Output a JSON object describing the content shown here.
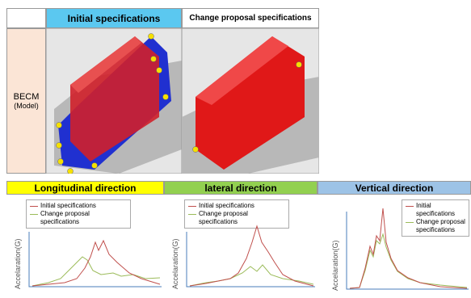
{
  "table": {
    "columns": [
      "Initial specifications",
      "Change proposal specifications"
    ],
    "row_label": [
      "BECM",
      "(Model)"
    ]
  },
  "charts": [
    {
      "title": "Longitudinal direction",
      "legend": [
        "Initial specifications",
        "Change proposal specifications"
      ],
      "y_label": "Accelaration(G)"
    },
    {
      "title": "lateral direction",
      "legend": [
        "Initial specifications",
        "Change proposal specifications"
      ],
      "y_label": "Accelaration(G)"
    },
    {
      "title": "Vertical direction",
      "legend": [
        "Initial specifications",
        "Change proposal specifications"
      ],
      "y_label": "Accelaration(G)"
    }
  ]
}
